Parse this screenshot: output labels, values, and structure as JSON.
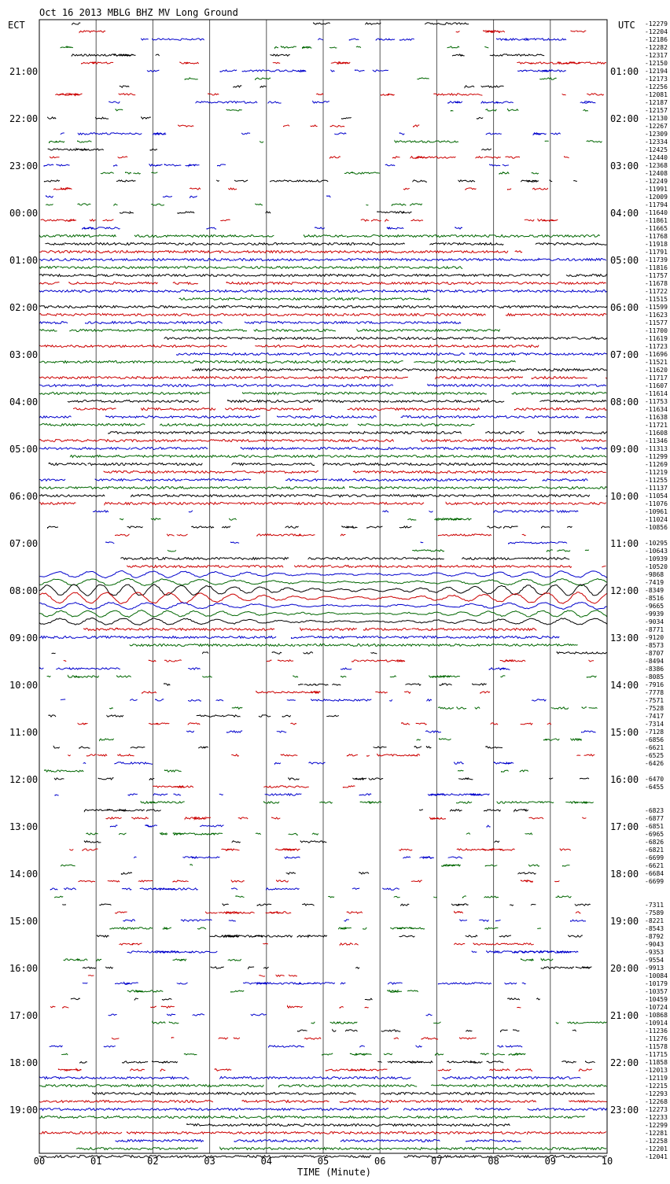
{
  "chart_data": {
    "type": "line",
    "title": "Oct 16 2013 MBLG BHZ MV Long Ground",
    "xlabel": "TIME (Minute)",
    "left_axis_label": "ECT",
    "right_axis_label": "UTC",
    "x_ticks": [
      "00",
      "01",
      "02",
      "03",
      "04",
      "05",
      "06",
      "07",
      "08",
      "09",
      "10"
    ],
    "xlim": [
      0,
      10
    ],
    "grid_vertical": true,
    "trace_colors": [
      "#000000",
      "#cc0000",
      "#0000cc",
      "#006600"
    ],
    "ect_hours": [
      "21:00",
      "22:00",
      "23:00",
      "00:00",
      "01:00",
      "02:00",
      "03:00",
      "04:00",
      "05:00",
      "06:00",
      "07:00",
      "08:00",
      "09:00",
      "10:00",
      "11:00",
      "12:00",
      "13:00",
      "14:00",
      "15:00",
      "16:00",
      "17:00",
      "18:00",
      "19:00"
    ],
    "utc_hours": [
      "01:00",
      "02:00",
      "03:00",
      "04:00",
      "05:00",
      "06:00",
      "07:00",
      "08:00",
      "09:00",
      "10:00",
      "11:00",
      "12:00",
      "13:00",
      "14:00",
      "15:00",
      "16:00",
      "17:00",
      "18:00",
      "19:00",
      "20:00",
      "21:00",
      "22:00",
      "23:00"
    ],
    "trace_offsets": [
      "-12279",
      "-12204",
      "-12186",
      "-12282",
      "-12317",
      "-12150",
      "-12194",
      "-12173",
      "-12256",
      "-12081",
      "-12187",
      "-12157",
      "-12130",
      "-12267",
      "-12309",
      "-12334",
      "-12425",
      "-12440",
      "-12368",
      "-12408",
      "-12249",
      "-11991",
      "-12009",
      "-11794",
      "-11640",
      "-11861",
      "-11665",
      "-11768",
      "-11918",
      "-11791",
      "-11739",
      "-11816",
      "-11757",
      "-11678",
      "-11722",
      "-11515",
      "-11599",
      "-11623",
      "-11577",
      "-11700",
      "-11619",
      "-11723",
      "-11696",
      "-11521",
      "-11620",
      "-11717",
      "-11607",
      "-11614",
      "-11753",
      "-11634",
      "-11638",
      "-11721",
      "-11608",
      "-11346",
      "-11313",
      "-11299",
      "-11269",
      "-11219",
      "-11255",
      "-11137",
      "-11054",
      "-11076",
      "-10961",
      "-11024",
      "-10856",
      "",
      "-10295",
      "-10643",
      "-10939",
      "-10520",
      "-9868",
      "-7419",
      "-8349",
      "-8516",
      "-9665",
      "-9939",
      "-9034",
      "-8771",
      "-9120",
      "-8573",
      "-8707",
      "-8494",
      "-8386",
      "-8085",
      "-7916",
      "-7778",
      "-7571",
      "-7528",
      "-7417",
      "-7314",
      "-7128",
      "-6856",
      "-6621",
      "-6525",
      "-6426",
      "",
      "-6470",
      "-6455",
      "",
      "",
      "-6823",
      "-6877",
      "-6851",
      "-6965",
      "-6826",
      "-6821",
      "-6699",
      "-6621",
      "-6684",
      "-6699",
      "",
      "",
      "-7311",
      "-7589",
      "-8221",
      "-8543",
      "-8792",
      "-9043",
      "-9353",
      "-9554",
      "-9913",
      "-10084",
      "-10179",
      "-10357",
      "-10459",
      "-10724",
      "-10868",
      "-10914",
      "-11236",
      "-11276",
      "-11578",
      "-11715",
      "-11858",
      "-12013",
      "-12119",
      "-12215",
      "-12293",
      "-12268",
      "-12273",
      "-12233",
      "-12299",
      "-12281",
      "-12258",
      "-12201",
      "-12041"
    ]
  }
}
